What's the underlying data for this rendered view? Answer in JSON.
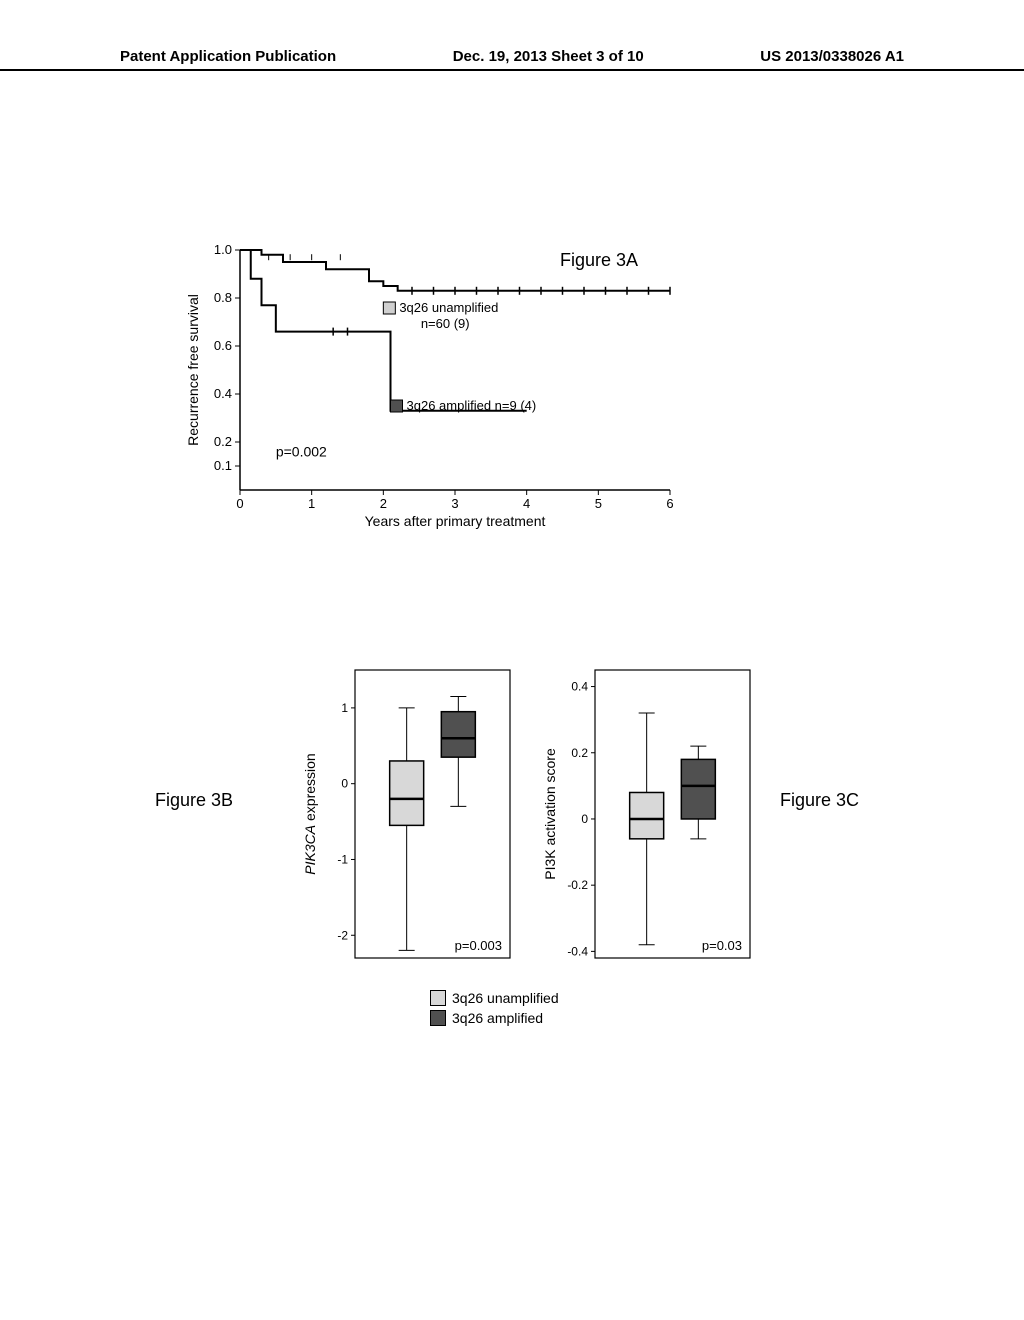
{
  "header": {
    "left": "Patent Application Publication",
    "center": "Dec. 19, 2013  Sheet 3 of 10",
    "right": "US 2013/0338026 A1"
  },
  "fig3a": {
    "label": "Figure 3A",
    "type": "kaplan-meier",
    "ylabel": "Recurrence free survival",
    "xlabel": "Years after primary treatment",
    "ylim": [
      0,
      1.0
    ],
    "yticks": [
      0.1,
      0.2,
      0.4,
      0.6,
      0.8,
      1.0
    ],
    "xlim": [
      0,
      6
    ],
    "xticks": [
      0,
      1,
      2,
      3,
      4,
      5,
      6
    ],
    "p_value": "p=0.002",
    "series": [
      {
        "name": "3q26 unamplified",
        "sample": "n=60 (9)",
        "color": "#000000",
        "points": [
          [
            0,
            1.0
          ],
          [
            0.3,
            0.98
          ],
          [
            0.6,
            0.95
          ],
          [
            1.2,
            0.92
          ],
          [
            1.8,
            0.87
          ],
          [
            2.0,
            0.85
          ],
          [
            2.2,
            0.83
          ],
          [
            6.0,
            0.83
          ]
        ]
      },
      {
        "name": "3q26 amplified",
        "sample": "n=9 (4)",
        "color": "#000000",
        "points": [
          [
            0,
            1.0
          ],
          [
            0.15,
            0.88
          ],
          [
            0.3,
            0.77
          ],
          [
            0.5,
            0.66
          ],
          [
            1.3,
            0.66
          ],
          [
            1.5,
            0.66
          ],
          [
            2.1,
            0.33
          ],
          [
            4.0,
            0.33
          ]
        ]
      }
    ],
    "legend_box_unamp": "#d0d0d0",
    "legend_box_amp": "#505050",
    "text_color": "#000000",
    "axis_color": "#000000",
    "background": "#ffffff"
  },
  "fig3b": {
    "label": "Figure 3B",
    "type": "boxplot",
    "ylabel": "PIK3CA expression",
    "ylabel_style": "italic-first",
    "ylim": [
      -2.3,
      1.5
    ],
    "yticks": [
      -2,
      -1,
      0,
      1
    ],
    "p_value": "p=0.003",
    "boxes": [
      {
        "group": "unamplified",
        "fill": "#d8d8d8",
        "median": -0.2,
        "q1": -0.55,
        "q3": 0.3,
        "whisker_lo": -2.2,
        "whisker_hi": 1.0
      },
      {
        "group": "amplified",
        "fill": "#505050",
        "median": 0.6,
        "q1": 0.35,
        "q3": 0.95,
        "whisker_lo": -0.3,
        "whisker_hi": 1.15
      }
    ],
    "axis_color": "#000000",
    "background": "#ffffff"
  },
  "fig3c": {
    "label": "Figure 3C",
    "type": "boxplot",
    "ylabel": "PI3K activation score",
    "ylim": [
      -0.42,
      0.45
    ],
    "yticks": [
      -0.4,
      -0.2,
      0.0,
      0.2,
      0.4
    ],
    "p_value": "p=0.03",
    "boxes": [
      {
        "group": "unamplified",
        "fill": "#d8d8d8",
        "median": 0.0,
        "q1": -0.06,
        "q3": 0.08,
        "whisker_lo": -0.38,
        "whisker_hi": 0.32
      },
      {
        "group": "amplified",
        "fill": "#505050",
        "median": 0.1,
        "q1": 0.0,
        "q3": 0.18,
        "whisker_lo": -0.06,
        "whisker_hi": 0.22
      }
    ],
    "axis_color": "#000000",
    "background": "#ffffff"
  },
  "legend": {
    "unamp_label": "3q26 unamplified",
    "amp_label": "3q26 amplified",
    "unamp_fill": "#d8d8d8",
    "amp_fill": "#505050"
  }
}
